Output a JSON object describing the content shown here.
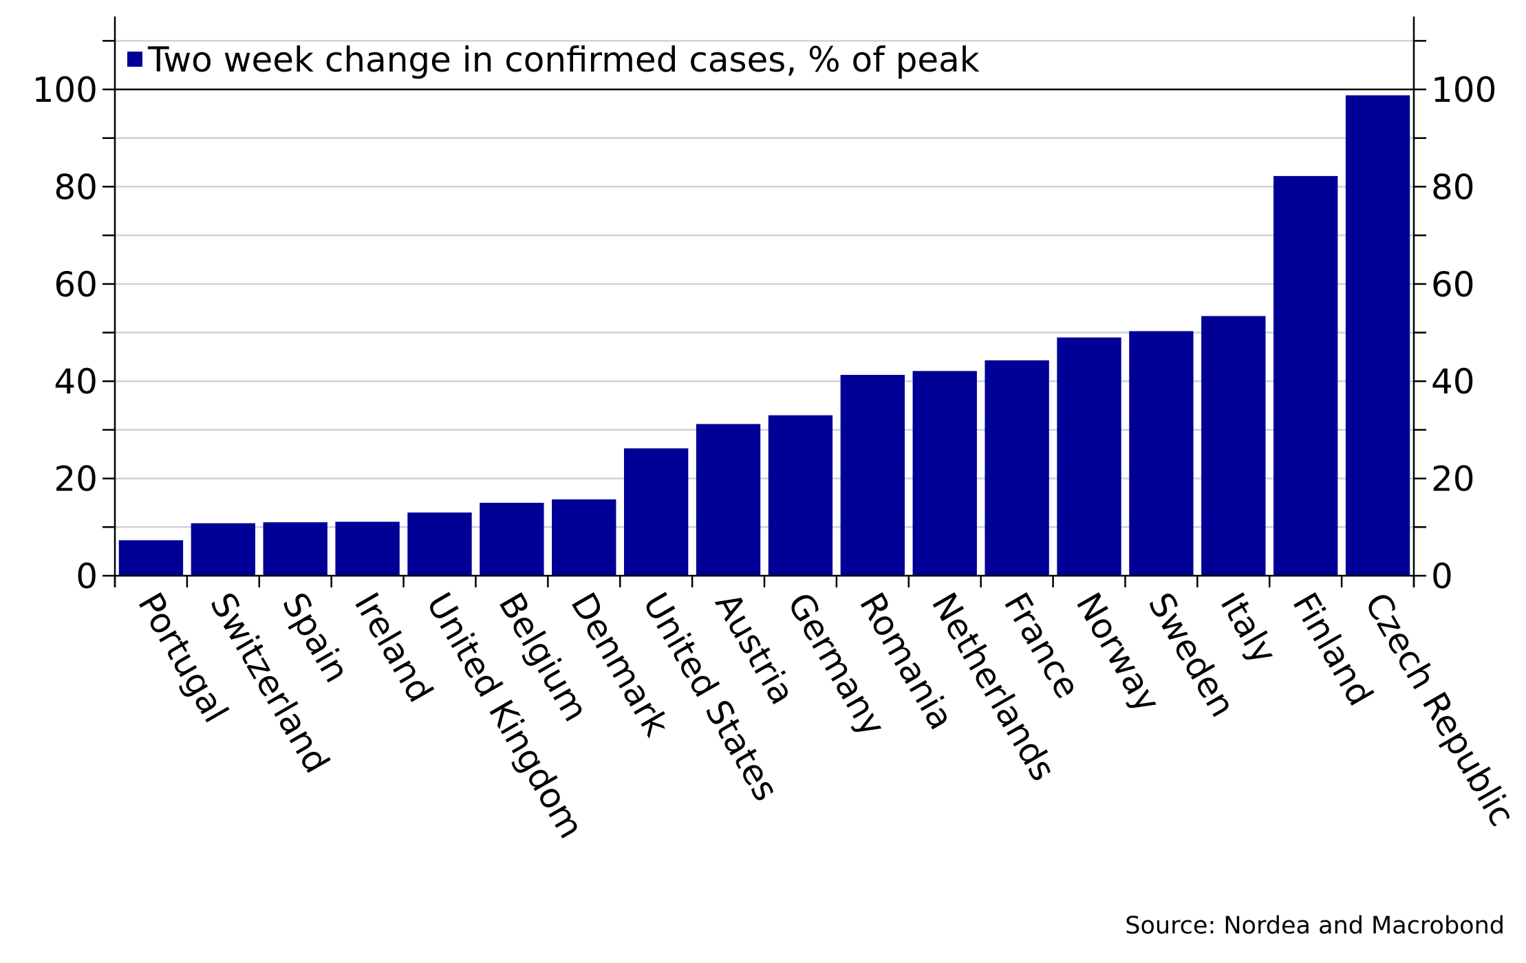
{
  "chart_data": {
    "type": "bar",
    "legend": {
      "label": "Two week change in confirmed cases, % of peak",
      "placement": "top-left",
      "color": "#000096"
    },
    "categories": [
      "Portugal",
      "Switzerland",
      "Spain",
      "Ireland",
      "United Kingdom",
      "Belgium",
      "Denmark",
      "United States",
      "Austria",
      "Germany",
      "Romania",
      "Netherlands",
      "France",
      "Norway",
      "Sweden",
      "Italy",
      "Finland",
      "Czech Republic"
    ],
    "series": [
      {
        "name": "Two week change in confirmed cases, % of peak",
        "color": "#000096",
        "values": [
          7.3,
          10.8,
          11.0,
          11.1,
          13.0,
          15.0,
          15.7,
          26.2,
          31.2,
          33.0,
          41.3,
          42.1,
          44.3,
          49.0,
          50.3,
          53.4,
          82.2,
          98.8
        ]
      }
    ],
    "y_axis_left": {
      "ticks": [
        "0",
        "20",
        "40",
        "60",
        "80",
        "100"
      ]
    },
    "y_axis_right": {
      "ticks": [
        "0",
        "20",
        "40",
        "60",
        "80",
        "100"
      ]
    },
    "ylim": [
      0,
      115
    ],
    "grid": true,
    "gridline_color": "#c9d3dc",
    "source": "Source: Nordea and Macrobond"
  }
}
